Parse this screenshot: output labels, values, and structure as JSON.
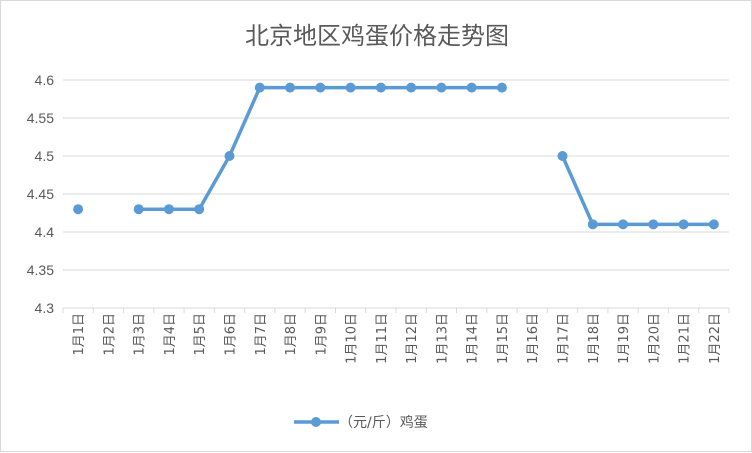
{
  "chart_data": {
    "type": "line",
    "title": "北京地区鸡蛋价格走势图",
    "xlabel": "",
    "ylabel": "",
    "categories": [
      "1月1日",
      "1月2日",
      "1月3日",
      "1月4日",
      "1月5日",
      "1月6日",
      "1月7日",
      "1月8日",
      "1月9日",
      "1月10日",
      "1月11日",
      "1月12日",
      "1月13日",
      "1月14日",
      "1月15日",
      "1月16日",
      "1月17日",
      "1月18日",
      "1月19日",
      "1月20日",
      "1月21日",
      "1月22日"
    ],
    "series": [
      {
        "name": "（元/斤）鸡蛋",
        "values": [
          4.43,
          null,
          4.43,
          4.43,
          4.43,
          4.5,
          4.59,
          4.59,
          4.59,
          4.59,
          4.59,
          4.59,
          4.59,
          4.59,
          4.59,
          null,
          4.5,
          4.41,
          4.41,
          4.41,
          4.41,
          4.41
        ]
      }
    ],
    "ylim": [
      4.3,
      4.6
    ],
    "yticks": [
      "4.3",
      "4.35",
      "4.4",
      "4.45",
      "4.5",
      "4.55",
      "4.6"
    ],
    "grid": true,
    "legend": "bottom",
    "colors": {
      "series": "#5b9bd5",
      "grid": "#d9d9d9",
      "text": "#595959"
    }
  }
}
